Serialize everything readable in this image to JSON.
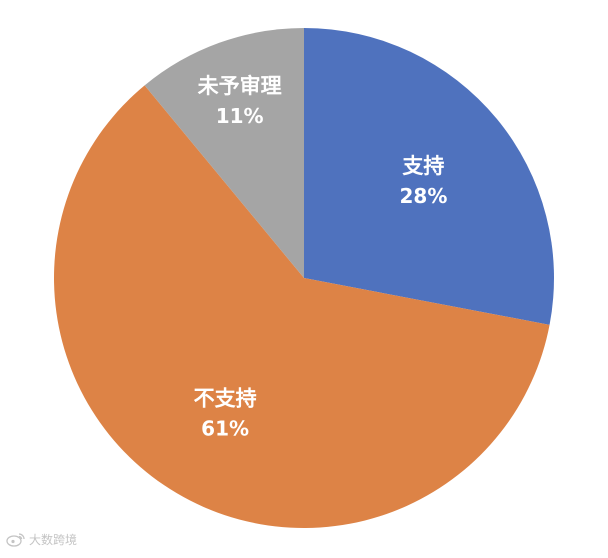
{
  "chart_data": {
    "type": "pie",
    "title": "",
    "slices": [
      {
        "label": "支持",
        "value": 28,
        "display": "28%",
        "color": "#4f72be"
      },
      {
        "label": "不支持",
        "value": 61,
        "display": "61%",
        "color": "#dd8346"
      },
      {
        "label": "未予审理",
        "value": 11,
        "display": "11%",
        "color": "#a5a5a5"
      }
    ],
    "start_angle_deg": 0,
    "direction": "clockwise",
    "legend": "none",
    "data_labels": "inside"
  },
  "watermark": {
    "text": "大数跨境",
    "icon": "weibo-logo-icon"
  }
}
